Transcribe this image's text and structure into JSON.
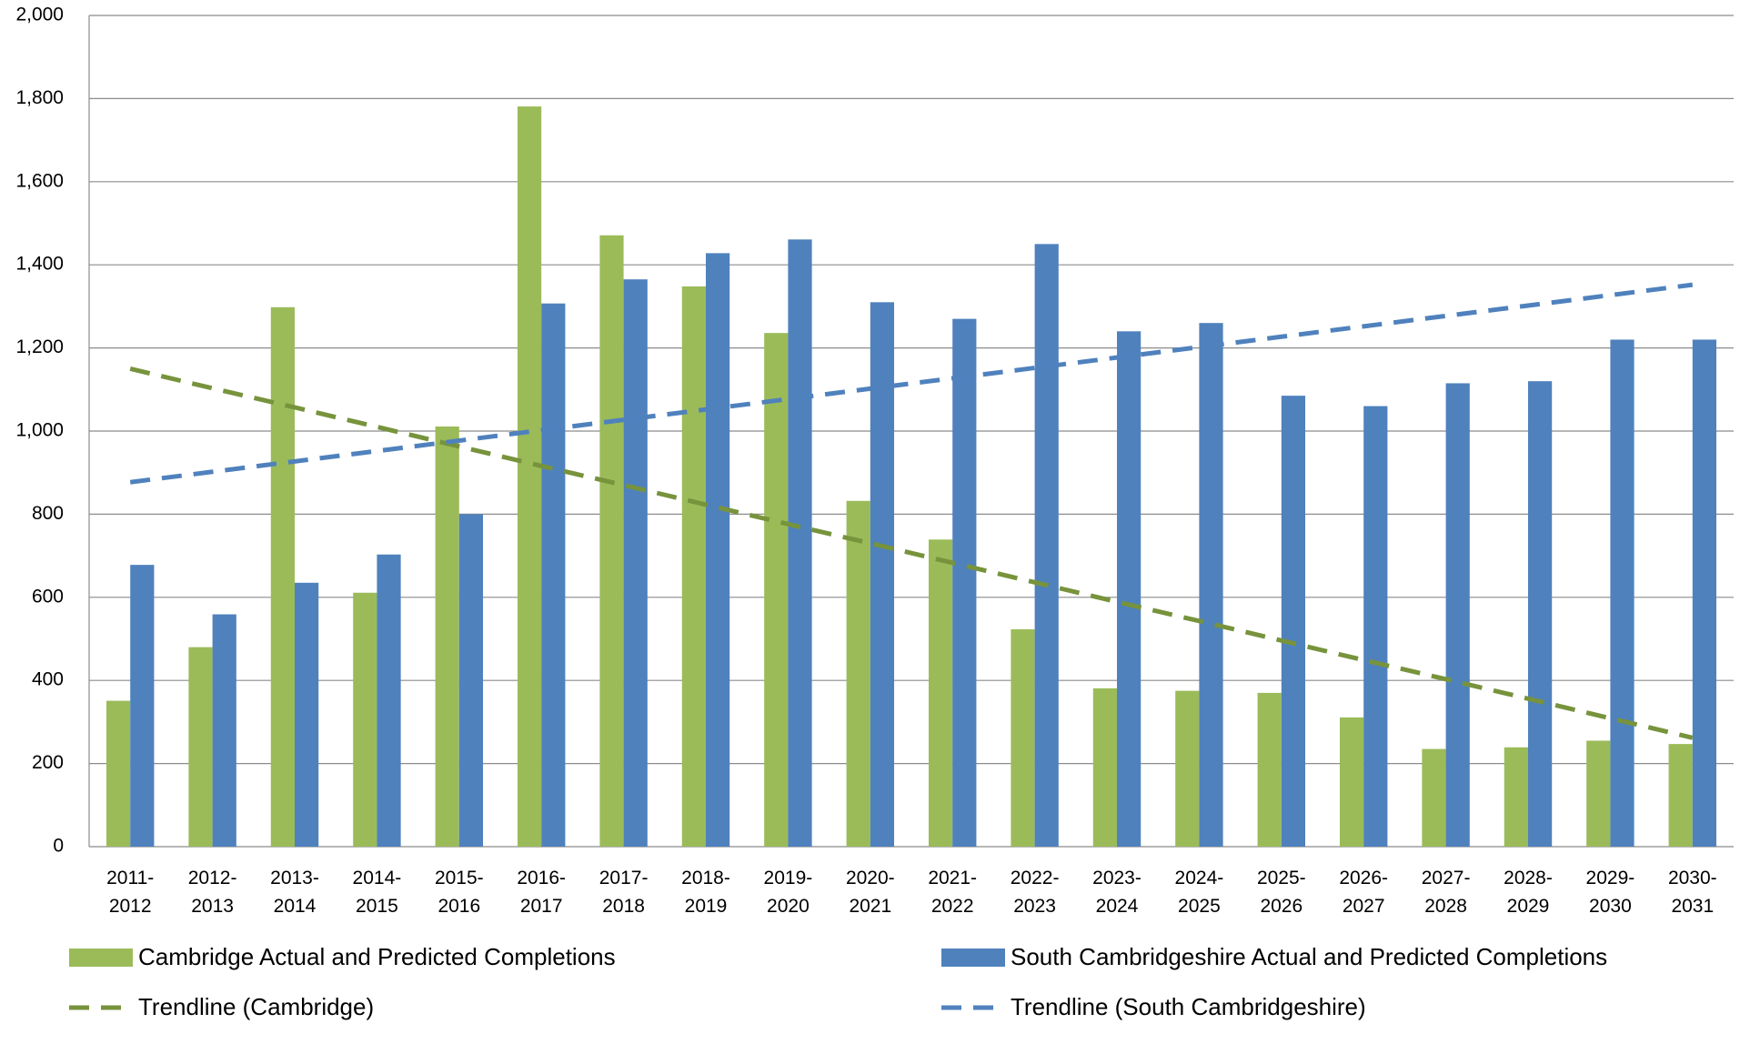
{
  "chart_data": {
    "type": "bar",
    "categories": [
      "2011-2012",
      "2012-2013",
      "2013-2014",
      "2014-2015",
      "2015-2016",
      "2016-2017",
      "2017-2018",
      "2018-2019",
      "2019-2020",
      "2020-2021",
      "2021-2022",
      "2022-2023",
      "2023-2024",
      "2024-2025",
      "2025-2026",
      "2026-2027",
      "2027-2028",
      "2028-2029",
      "2029-2030",
      "2030-2031"
    ],
    "series": [
      {
        "name": "Cambridge Actual and Predicted Completions",
        "type": "bar",
        "color": "#9bbb59",
        "values": [
          351,
          480,
          1298,
          611,
          1011,
          1781,
          1471,
          1348,
          1236,
          832,
          739,
          523,
          381,
          375,
          370,
          311,
          235,
          239,
          255,
          247
        ]
      },
      {
        "name": "South Cambridgeshire Actual and Predicted Completions",
        "type": "bar",
        "color": "#4f81bd",
        "values": [
          678,
          559,
          635,
          703,
          800,
          1307,
          1365,
          1428,
          1461,
          1310,
          1270,
          1450,
          1240,
          1260,
          1085,
          1060,
          1115,
          1120,
          1220,
          1220
        ]
      },
      {
        "name": "Trendline (Cambridge)",
        "type": "line",
        "dashed": true,
        "color": "#77933c",
        "values": [
          1150,
          1103,
          1057,
          1010,
          963,
          916,
          870,
          823,
          776,
          730,
          683,
          636,
          589,
          543,
          496,
          449,
          403,
          356,
          309,
          262
        ]
      },
      {
        "name": "Trendline (South Cambridgeshire)",
        "type": "line",
        "dashed": true,
        "color": "#4f81bd",
        "values": [
          877,
          902,
          927,
          952,
          977,
          1002,
          1027,
          1052,
          1077,
          1102,
          1127,
          1152,
          1177,
          1202,
          1227,
          1252,
          1277,
          1302,
          1327,
          1352
        ]
      }
    ],
    "ylim": [
      0,
      2000
    ],
    "yticks": [
      0,
      200,
      400,
      600,
      800,
      {
        "value": 1000,
        "label": "1,000"
      },
      {
        "value": 1200,
        "label": "1,200"
      },
      {
        "value": 1400,
        "label": "1,400"
      },
      {
        "value": 1600,
        "label": "1,600"
      },
      {
        "value": 1800,
        "label": "1,800"
      },
      {
        "value": 2000,
        "label": "2,000"
      }
    ],
    "grid": true
  }
}
